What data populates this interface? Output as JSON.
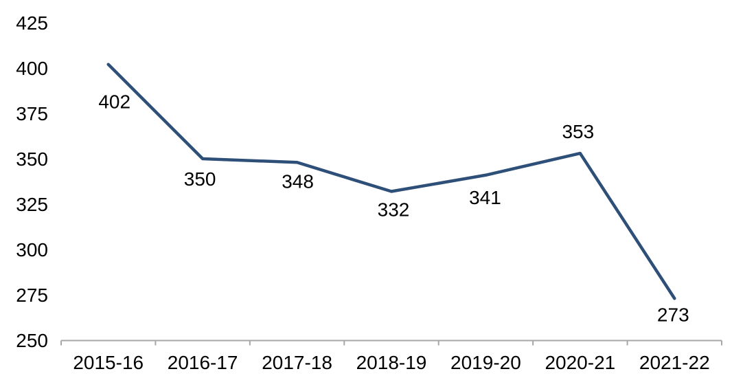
{
  "chart_data": {
    "type": "line",
    "title": "",
    "xlabel": "",
    "ylabel": "",
    "categories": [
      "2015-16",
      "2016-17",
      "2017-18",
      "2018-19",
      "2019-20",
      "2020-21",
      "2021-22"
    ],
    "series": [
      {
        "name": "series-1",
        "values": [
          402,
          350,
          348,
          332,
          341,
          353,
          273
        ],
        "data_labels": [
          "402",
          "350",
          "348",
          "332",
          "341",
          "353",
          "273"
        ],
        "label_placement": [
          "below",
          "below",
          "below",
          "below",
          "below",
          "above",
          "below"
        ]
      }
    ],
    "ylim": [
      250,
      425
    ],
    "ytick_step": 25,
    "yticks": [
      250,
      275,
      300,
      325,
      350,
      375,
      400,
      425
    ],
    "grid": false,
    "legend": "none",
    "colors": {
      "line": "#2E4F78",
      "axis": "#A6A6A6",
      "text": "#000000",
      "background": "#FFFFFF"
    }
  }
}
